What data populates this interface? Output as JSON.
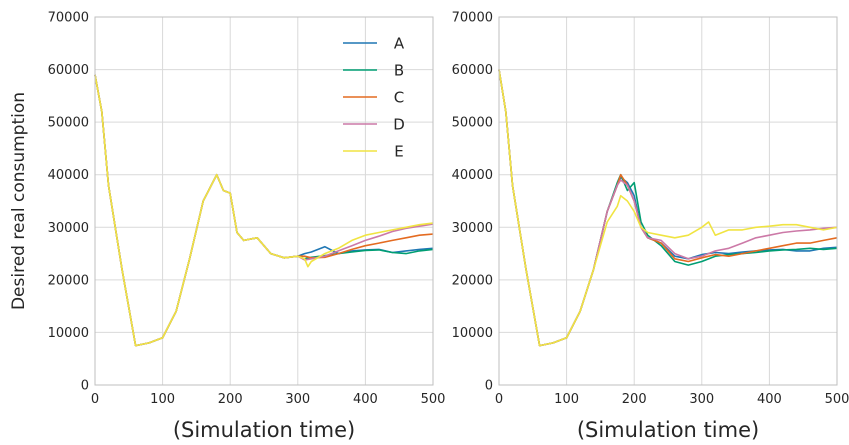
{
  "figure": {
    "ylabel": "Desired real consumption"
  },
  "chart_data": [
    {
      "type": "line",
      "xlabel": "(Simulation time)",
      "ylabel": "Desired real consumption",
      "xlim": [
        0,
        500
      ],
      "ylim": [
        0,
        70000
      ],
      "xticks": [
        0,
        100,
        200,
        300,
        400,
        500
      ],
      "yticks": [
        0,
        10000,
        20000,
        30000,
        40000,
        50000,
        60000,
        70000
      ],
      "grid": true,
      "legend": "top-right",
      "series": [
        {
          "name": "A",
          "color": "#1f77b4",
          "x": [
            0,
            10,
            20,
            40,
            60,
            80,
            100,
            120,
            140,
            160,
            180,
            190,
            200,
            210,
            220,
            240,
            260,
            280,
            300,
            310,
            320,
            340,
            360,
            380,
            400,
            420,
            440,
            460,
            480,
            500
          ],
          "y": [
            59000,
            52000,
            38000,
            22000,
            7500,
            8000,
            9000,
            14000,
            24000,
            35000,
            40000,
            37000,
            36500,
            29000,
            27500,
            28000,
            25000,
            24200,
            24500,
            25000,
            25300,
            26300,
            25000,
            25500,
            25700,
            25800,
            25200,
            25500,
            25800,
            26000
          ]
        },
        {
          "name": "B",
          "color": "#009e73",
          "x": [
            0,
            10,
            20,
            40,
            60,
            80,
            100,
            120,
            140,
            160,
            180,
            190,
            200,
            210,
            220,
            240,
            260,
            280,
            300,
            310,
            320,
            340,
            360,
            380,
            400,
            420,
            440,
            460,
            480,
            500
          ],
          "y": [
            59000,
            52000,
            38000,
            22000,
            7500,
            8000,
            9000,
            14000,
            24000,
            35000,
            40000,
            37000,
            36500,
            29000,
            27500,
            28000,
            25000,
            24200,
            24500,
            24000,
            24300,
            24600,
            25000,
            25300,
            25600,
            25700,
            25200,
            25000,
            25500,
            25800
          ]
        },
        {
          "name": "C",
          "color": "#e46b21",
          "x": [
            0,
            10,
            20,
            40,
            60,
            80,
            100,
            120,
            140,
            160,
            180,
            190,
            200,
            210,
            220,
            240,
            260,
            280,
            300,
            310,
            320,
            340,
            360,
            380,
            400,
            420,
            440,
            460,
            480,
            500
          ],
          "y": [
            59000,
            52000,
            38000,
            22000,
            7500,
            8000,
            9000,
            14000,
            24000,
            35000,
            40000,
            37000,
            36500,
            29000,
            27500,
            28000,
            25000,
            24200,
            24500,
            24500,
            24200,
            24300,
            25000,
            25800,
            26500,
            27000,
            27500,
            28000,
            28500,
            28700
          ]
        },
        {
          "name": "D",
          "color": "#cc79a7",
          "x": [
            0,
            10,
            20,
            40,
            60,
            80,
            100,
            120,
            140,
            160,
            180,
            190,
            200,
            210,
            220,
            240,
            260,
            280,
            300,
            310,
            320,
            340,
            360,
            380,
            400,
            420,
            440,
            460,
            480,
            500
          ],
          "y": [
            59000,
            52000,
            38000,
            22000,
            7500,
            8000,
            9000,
            14000,
            24000,
            35000,
            40000,
            37000,
            36500,
            29000,
            27500,
            28000,
            25000,
            24200,
            24500,
            23800,
            24000,
            24500,
            25500,
            26500,
            27500,
            28300,
            29200,
            29800,
            30200,
            30600
          ]
        },
        {
          "name": "E",
          "color": "#f0e442",
          "x": [
            0,
            10,
            20,
            40,
            60,
            80,
            100,
            120,
            140,
            160,
            180,
            190,
            200,
            210,
            220,
            240,
            260,
            280,
            300,
            310,
            315,
            320,
            340,
            360,
            380,
            400,
            420,
            440,
            460,
            480,
            500
          ],
          "y": [
            59000,
            52000,
            38000,
            22000,
            7500,
            8000,
            9000,
            14000,
            24000,
            35000,
            40000,
            37000,
            36500,
            29000,
            27500,
            28000,
            25000,
            24200,
            24500,
            24000,
            22500,
            23500,
            25000,
            26000,
            27500,
            28500,
            29000,
            29500,
            30000,
            30500,
            30800
          ]
        }
      ]
    },
    {
      "type": "line",
      "xlabel": "(Simulation time)",
      "ylabel": "",
      "xlim": [
        0,
        500
      ],
      "ylim": [
        0,
        70000
      ],
      "xticks": [
        0,
        100,
        200,
        300,
        400,
        500
      ],
      "yticks": [
        0,
        10000,
        20000,
        30000,
        40000,
        50000,
        60000,
        70000
      ],
      "grid": true,
      "legend": "none",
      "series": [
        {
          "name": "A",
          "color": "#1f77b4",
          "x": [
            0,
            10,
            20,
            40,
            60,
            80,
            100,
            120,
            140,
            160,
            175,
            180,
            190,
            200,
            210,
            220,
            240,
            260,
            280,
            300,
            320,
            340,
            360,
            380,
            400,
            420,
            440,
            460,
            480,
            500
          ],
          "y": [
            60000,
            52000,
            38000,
            22000,
            7500,
            8000,
            9000,
            14000,
            22000,
            33000,
            38000,
            39500,
            38500,
            36000,
            30000,
            28000,
            27000,
            24500,
            24000,
            24800,
            25200,
            25000,
            25300,
            25500,
            25700,
            25800,
            25500,
            25500,
            26000,
            26200
          ]
        },
        {
          "name": "B",
          "color": "#009e73",
          "x": [
            0,
            10,
            20,
            40,
            60,
            80,
            100,
            120,
            140,
            160,
            175,
            180,
            190,
            200,
            210,
            220,
            240,
            260,
            280,
            300,
            320,
            340,
            360,
            380,
            400,
            420,
            440,
            460,
            480,
            500
          ],
          "y": [
            60000,
            52000,
            38000,
            22000,
            7500,
            8000,
            9000,
            14000,
            22000,
            33000,
            38500,
            40000,
            37000,
            38500,
            31000,
            28500,
            26500,
            23500,
            22800,
            23500,
            24500,
            24800,
            25000,
            25200,
            25500,
            25700,
            25800,
            26000,
            25800,
            26000
          ]
        },
        {
          "name": "C",
          "color": "#e46b21",
          "x": [
            0,
            10,
            20,
            40,
            60,
            80,
            100,
            120,
            140,
            160,
            175,
            180,
            190,
            200,
            210,
            220,
            240,
            260,
            280,
            300,
            320,
            340,
            360,
            380,
            400,
            420,
            440,
            460,
            480,
            500
          ],
          "y": [
            60000,
            52000,
            38000,
            22000,
            7500,
            8000,
            9000,
            14000,
            22000,
            33000,
            38000,
            40000,
            38000,
            35000,
            30000,
            28000,
            27000,
            24000,
            23500,
            24200,
            24800,
            24500,
            25000,
            25500,
            26000,
            26500,
            27000,
            27000,
            27500,
            28000
          ]
        },
        {
          "name": "D",
          "color": "#cc79a7",
          "x": [
            0,
            10,
            20,
            40,
            60,
            80,
            100,
            120,
            140,
            160,
            175,
            180,
            190,
            200,
            210,
            220,
            240,
            260,
            280,
            300,
            320,
            340,
            360,
            380,
            400,
            420,
            440,
            460,
            480,
            500
          ],
          "y": [
            60000,
            52000,
            38000,
            22000,
            7500,
            8000,
            9000,
            14000,
            22000,
            33000,
            38000,
            39000,
            38000,
            35000,
            30000,
            28000,
            27500,
            25000,
            24000,
            24500,
            25500,
            26000,
            27000,
            28000,
            28500,
            29000,
            29300,
            29500,
            29800,
            30000
          ]
        },
        {
          "name": "E",
          "color": "#f0e442",
          "x": [
            0,
            10,
            20,
            40,
            60,
            80,
            100,
            120,
            140,
            160,
            175,
            180,
            190,
            200,
            210,
            220,
            240,
            260,
            280,
            300,
            310,
            320,
            340,
            360,
            380,
            400,
            420,
            440,
            460,
            480,
            500
          ],
          "y": [
            60000,
            52000,
            38000,
            22000,
            7500,
            8000,
            9000,
            14000,
            22000,
            31000,
            34000,
            36000,
            35000,
            33000,
            30000,
            29000,
            28500,
            28000,
            28500,
            30000,
            31000,
            28500,
            29500,
            29500,
            30000,
            30200,
            30500,
            30500,
            30000,
            29500,
            30000
          ]
        }
      ]
    }
  ]
}
